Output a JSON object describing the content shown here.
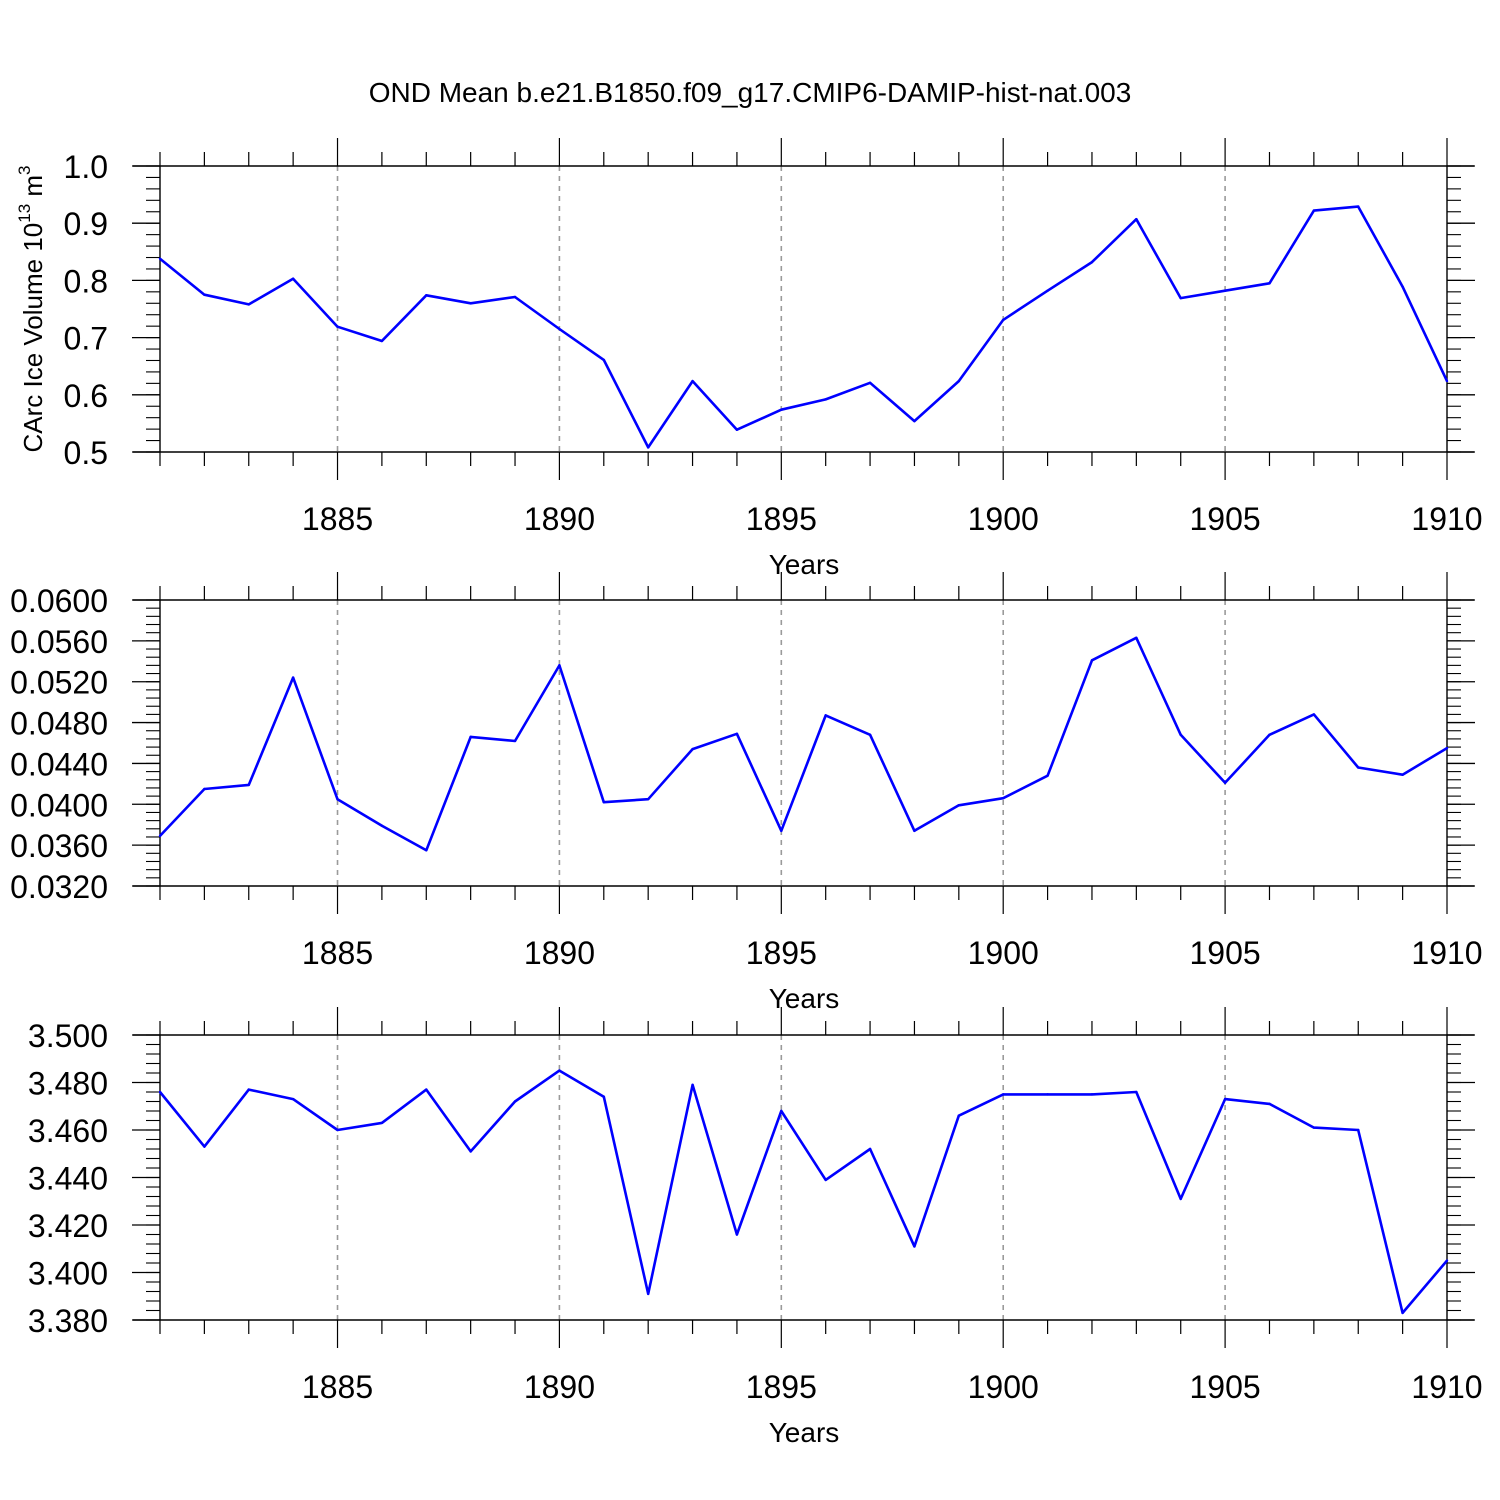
{
  "title": "OND Mean b.e21.B1850.f09_g17.CMIP6-DAMIP-hist-nat.003",
  "colors": {
    "line": "#0000ff",
    "axis": "#000000",
    "grid": "#9a9a9a"
  },
  "chart_data": [
    {
      "type": "line",
      "xlabel": "Years",
      "ylabel": "CArc Ice Volume 10",
      "ylabel_sup": "13",
      "ylabel_unit": " m",
      "ylabel_unit_sup": "3",
      "xlim": [
        1881,
        1910
      ],
      "ylim": [
        0.5,
        1.0
      ],
      "yticks": [
        0.5,
        0.6,
        0.7,
        0.8,
        0.9,
        1.0
      ],
      "ytick_labels": [
        "0.5",
        "0.6",
        "0.7",
        "0.8",
        "0.9",
        "1.0"
      ],
      "yminor": 0.02,
      "xticks": [
        1885,
        1890,
        1895,
        1900,
        1905,
        1910
      ],
      "xtick_labels": [
        "1885",
        "1890",
        "1895",
        "1900",
        "1905",
        "1910"
      ],
      "x": [
        1881,
        1882,
        1883,
        1884,
        1885,
        1886,
        1887,
        1888,
        1889,
        1890,
        1891,
        1892,
        1893,
        1894,
        1895,
        1896,
        1897,
        1898,
        1899,
        1900,
        1901,
        1902,
        1903,
        1904,
        1905,
        1906,
        1907,
        1908,
        1909,
        1910
      ],
      "values": [
        0.838,
        0.775,
        0.758,
        0.803,
        0.719,
        0.694,
        0.774,
        0.76,
        0.771,
        0.715,
        0.661,
        0.508,
        0.624,
        0.539,
        0.574,
        0.592,
        0.621,
        0.554,
        0.624,
        0.731,
        0.782,
        0.832,
        0.907,
        0.769,
        0.782,
        0.795,
        0.922,
        0.929,
        0.789,
        0.624
      ],
      "grid": "dashed vertical lines at major x ticks"
    },
    {
      "type": "line",
      "xlabel": "Years",
      "ylabel": "",
      "xlim": [
        1881,
        1910
      ],
      "ylim": [
        0.032,
        0.06
      ],
      "yticks": [
        0.032,
        0.036,
        0.04,
        0.044,
        0.048,
        0.052,
        0.056,
        0.06
      ],
      "ytick_labels": [
        "0.0320",
        "0.0360",
        "0.0400",
        "0.0440",
        "0.0480",
        "0.0520",
        "0.0560",
        "0.0600"
      ],
      "yminor": 0.0008,
      "xticks": [
        1885,
        1890,
        1895,
        1900,
        1905,
        1910
      ],
      "xtick_labels": [
        "1885",
        "1890",
        "1895",
        "1900",
        "1905",
        "1910"
      ],
      "x": [
        1881,
        1882,
        1883,
        1884,
        1885,
        1886,
        1887,
        1888,
        1889,
        1890,
        1891,
        1892,
        1893,
        1894,
        1895,
        1896,
        1897,
        1898,
        1899,
        1900,
        1901,
        1902,
        1903,
        1904,
        1905,
        1906,
        1907,
        1908,
        1909,
        1910
      ],
      "values": [
        0.0369,
        0.0415,
        0.0419,
        0.0524,
        0.0405,
        0.0379,
        0.0355,
        0.0466,
        0.0462,
        0.0536,
        0.0402,
        0.0405,
        0.0454,
        0.0469,
        0.0374,
        0.0487,
        0.0468,
        0.0374,
        0.0399,
        0.0406,
        0.0428,
        0.0541,
        0.0563,
        0.0468,
        0.0421,
        0.0468,
        0.0488,
        0.0436,
        0.0429,
        0.0455
      ],
      "grid": "dashed vertical lines at major x ticks"
    },
    {
      "type": "line",
      "xlabel": "Years",
      "ylabel": "",
      "xlim": [
        1881,
        1910
      ],
      "ylim": [
        3.38,
        3.5
      ],
      "yticks": [
        3.38,
        3.4,
        3.42,
        3.44,
        3.46,
        3.48,
        3.5
      ],
      "ytick_labels": [
        "3.380",
        "3.400",
        "3.420",
        "3.440",
        "3.460",
        "3.480",
        "3.500"
      ],
      "yminor": 0.004,
      "xticks": [
        1885,
        1890,
        1895,
        1900,
        1905,
        1910
      ],
      "xtick_labels": [
        "1885",
        "1890",
        "1895",
        "1900",
        "1905",
        "1910"
      ],
      "x": [
        1881,
        1882,
        1883,
        1884,
        1885,
        1886,
        1887,
        1888,
        1889,
        1890,
        1891,
        1892,
        1893,
        1894,
        1895,
        1896,
        1897,
        1898,
        1899,
        1900,
        1901,
        1902,
        1903,
        1904,
        1905,
        1906,
        1907,
        1908,
        1909,
        1910
      ],
      "values": [
        3.476,
        3.453,
        3.477,
        3.473,
        3.46,
        3.463,
        3.477,
        3.451,
        3.472,
        3.485,
        3.474,
        3.391,
        3.479,
        3.416,
        3.468,
        3.439,
        3.452,
        3.411,
        3.466,
        3.475,
        3.475,
        3.475,
        3.476,
        3.431,
        3.473,
        3.471,
        3.461,
        3.46,
        3.383,
        3.405
      ],
      "grid": "dashed vertical lines at major x ticks"
    }
  ]
}
